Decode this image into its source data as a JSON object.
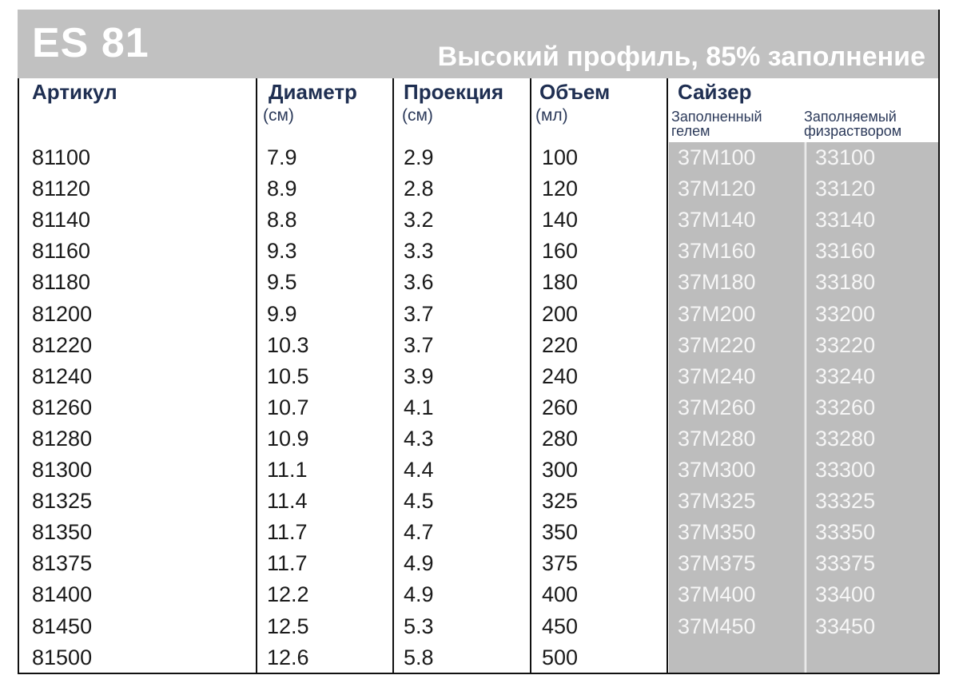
{
  "banner": {
    "code": "ES 81",
    "subtitle": "Высокий профиль, 85% заполнение"
  },
  "headers": {
    "article": "Артикул",
    "diameter": "Диаметр",
    "diameter_unit": "(см)",
    "projection": "Проекция",
    "projection_unit": "(см)",
    "volume": "Объем",
    "volume_unit": "(мл)",
    "sizer": "Сайзер",
    "sizer_gel": "Заполненный гелем",
    "sizer_saline": "Заполняемый физраствором"
  },
  "rows": [
    {
      "article": "81100",
      "diameter": "7.9",
      "projection": "2.9",
      "volume": "100",
      "gel": "37M100",
      "saline": "33100"
    },
    {
      "article": "81120",
      "diameter": "8.9",
      "projection": "2.8",
      "volume": "120",
      "gel": "37M120",
      "saline": "33120"
    },
    {
      "article": "81140",
      "diameter": "8.8",
      "projection": "3.2",
      "volume": "140",
      "gel": "37M140",
      "saline": "33140"
    },
    {
      "article": "81160",
      "diameter": "9.3",
      "projection": "3.3",
      "volume": "160",
      "gel": "37M160",
      "saline": "33160"
    },
    {
      "article": "81180",
      "diameter": "9.5",
      "projection": "3.6",
      "volume": "180",
      "gel": "37M180",
      "saline": "33180"
    },
    {
      "article": "81200",
      "diameter": "9.9",
      "projection": "3.7",
      "volume": "200",
      "gel": "37M200",
      "saline": "33200"
    },
    {
      "article": "81220",
      "diameter": "10.3",
      "projection": "3.7",
      "volume": "220",
      "gel": "37M220",
      "saline": "33220"
    },
    {
      "article": "81240",
      "diameter": "10.5",
      "projection": "3.9",
      "volume": "240",
      "gel": "37M240",
      "saline": "33240"
    },
    {
      "article": "81260",
      "diameter": "10.7",
      "projection": "4.1",
      "volume": "260",
      "gel": "37M260",
      "saline": "33260"
    },
    {
      "article": "81280",
      "diameter": "10.9",
      "projection": "4.3",
      "volume": "280",
      "gel": "37M280",
      "saline": "33280"
    },
    {
      "article": "81300",
      "diameter": "11.1",
      "projection": "4.4",
      "volume": "300",
      "gel": "37M300",
      "saline": "33300"
    },
    {
      "article": "81325",
      "diameter": "11.4",
      "projection": "4.5",
      "volume": "325",
      "gel": "37M325",
      "saline": "33325"
    },
    {
      "article": "81350",
      "diameter": "11.7",
      "projection": "4.7",
      "volume": "350",
      "gel": "37M350",
      "saline": "33350"
    },
    {
      "article": "81375",
      "diameter": "11.7",
      "projection": "4.9",
      "volume": "375",
      "gel": "37M375",
      "saline": "33375"
    },
    {
      "article": "81400",
      "diameter": "12.2",
      "projection": "4.9",
      "volume": "400",
      "gel": "37M400",
      "saline": "33400"
    },
    {
      "article": "81450",
      "diameter": "12.5",
      "projection": "5.3",
      "volume": "450",
      "gel": "37M450",
      "saline": "33450"
    },
    {
      "article": "81500",
      "diameter": "12.6",
      "projection": "5.8",
      "volume": "500",
      "gel": "",
      "saline": ""
    }
  ],
  "colors": {
    "banner_bg": "#c1c1c1",
    "sizer_bg": "#bdbdbd",
    "header_text": "#1f2f52",
    "sizer_text": "#f6f6f6"
  }
}
